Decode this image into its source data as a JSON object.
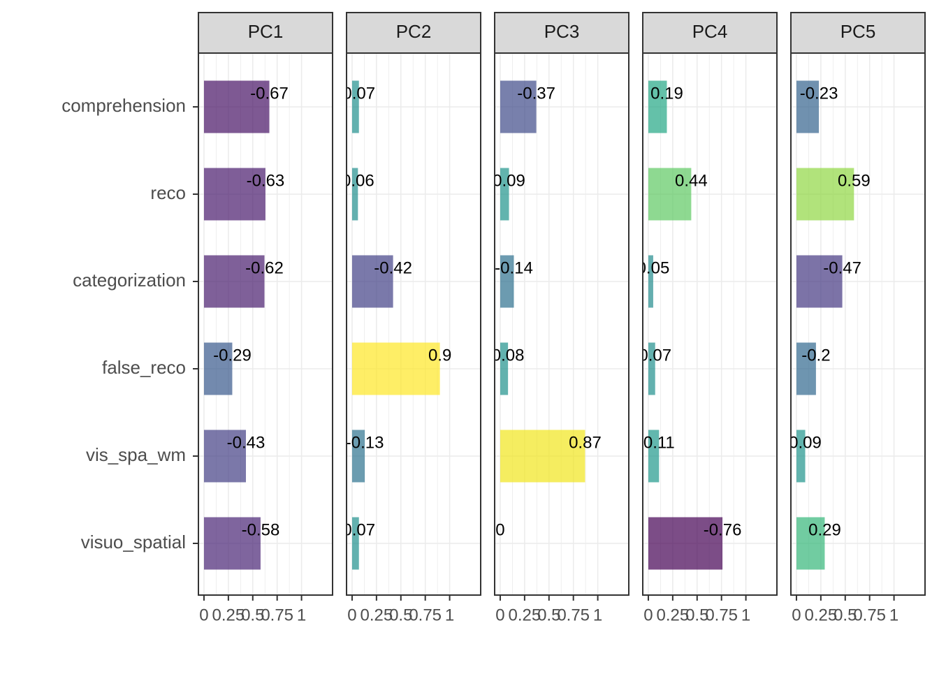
{
  "chart_data": {
    "type": "bar",
    "orientation": "horizontal",
    "categories": [
      "comprehension",
      "reco",
      "categorization",
      "false_reco",
      "vis_spa_wm",
      "visuo_spatial"
    ],
    "xlim": [
      -0.057,
      1.318
    ],
    "xticks": [
      0,
      0.25,
      0.5,
      0.75,
      1
    ],
    "grid": true,
    "opacity": 0.7,
    "facets": [
      {
        "title": "PC1",
        "values": [
          0.67,
          0.63,
          0.62,
          0.29,
          0.43,
          0.58
        ],
        "loadings": [
          -0.67,
          -0.63,
          -0.62,
          -0.29,
          -0.43,
          -0.58
        ],
        "colors": [
          "#471365",
          "#481a6c",
          "#481c6e",
          "#38598c",
          "#433e85",
          "#482475"
        ]
      },
      {
        "title": "PC2",
        "values": [
          0.07,
          0.06,
          0.42,
          0.9,
          0.13,
          0.07
        ],
        "loadings": [
          0.07,
          0.06,
          -0.42,
          0.9,
          -0.13,
          0.07
        ],
        "colors": [
          "#21908d",
          "#218e8d",
          "#424086",
          "#fde725",
          "#2c728e",
          "#21908d"
        ]
      },
      {
        "title": "PC3",
        "values": [
          0.37,
          0.09,
          0.14,
          0.08,
          0.87,
          0
        ],
        "loadings": [
          -0.37,
          0.09,
          -0.14,
          0.08,
          0.87,
          0
        ],
        "colors": [
          "#3e4a89",
          "#1f948c",
          "#2d718e",
          "#20928c",
          "#f1e51d",
          "#25858e"
        ]
      },
      {
        "title": "PC4",
        "values": [
          0.19,
          0.44,
          0.05,
          0.07,
          0.11,
          0.76
        ],
        "loadings": [
          0.19,
          0.44,
          0.05,
          0.07,
          0.11,
          -0.76
        ],
        "colors": [
          "#22a785",
          "#5ec962",
          "#228c8d",
          "#21908d",
          "#1f988b",
          "#440154"
        ]
      },
      {
        "title": "PC5",
        "values": [
          0.23,
          0.59,
          0.47,
          0.2,
          0.09,
          0.29
        ],
        "loadings": [
          -0.23,
          0.59,
          -0.47,
          -0.2,
          0.09,
          0.29
        ],
        "colors": [
          "#33638d",
          "#90d743",
          "#453781",
          "#31688e",
          "#1f948c",
          "#35b779"
        ]
      }
    ]
  }
}
